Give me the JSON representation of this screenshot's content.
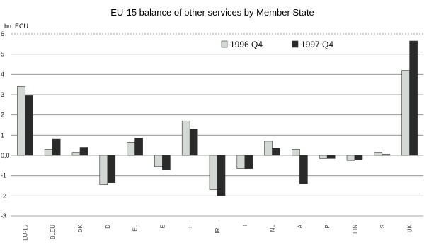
{
  "chart_data": {
    "type": "bar",
    "title": "EU-15 balance of other services by Member State",
    "ylabel": "bn. ECU",
    "ylim": [
      -3,
      6
    ],
    "yticks": [
      "-3",
      "-2",
      "-1",
      "0,0",
      "1",
      "2",
      "3",
      "4",
      "5",
      "6"
    ],
    "categories": [
      "EU-15",
      "BLEU",
      "DK",
      "D",
      "EL",
      "E",
      "F",
      "IRL",
      "I",
      "NL",
      "A",
      "P",
      "FIN",
      "S",
      "UK"
    ],
    "series": [
      {
        "name": "1996 Q4",
        "color": "#d4d8d4",
        "values": [
          3.4,
          0.3,
          0.15,
          -1.45,
          0.65,
          -0.55,
          1.7,
          -1.7,
          -0.65,
          0.7,
          0.3,
          -0.15,
          -0.25,
          0.15,
          4.2
        ]
      },
      {
        "name": "1997 Q4",
        "color": "#2a2a2a",
        "values": [
          2.95,
          0.8,
          0.4,
          -1.35,
          0.85,
          -0.7,
          1.3,
          -2.0,
          -0.65,
          0.35,
          -1.4,
          -0.15,
          -0.2,
          0.05,
          5.65
        ]
      }
    ],
    "grid": true,
    "legend": "top-right"
  }
}
